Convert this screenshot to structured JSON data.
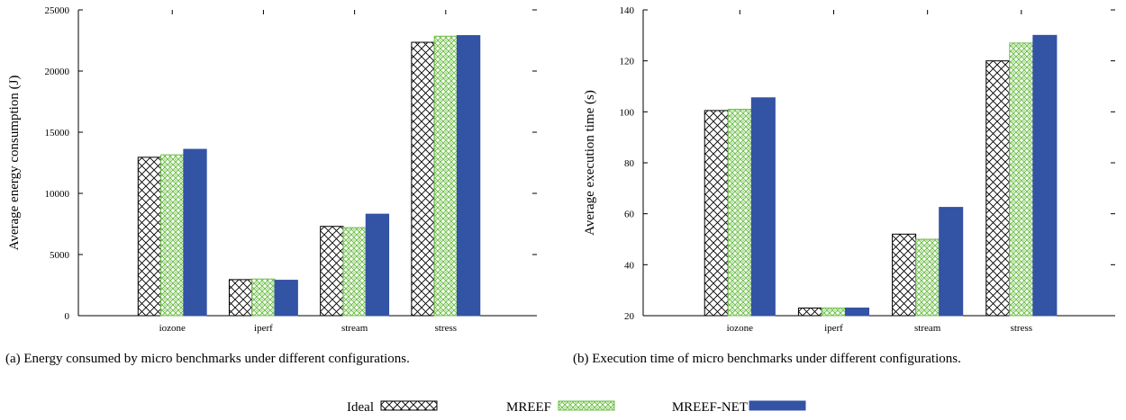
{
  "legend": {
    "items": [
      {
        "label": "Ideal",
        "pattern": "crosshatch"
      },
      {
        "label": "MREEF",
        "pattern": "green-checker"
      },
      {
        "label": "MREEF-NET",
        "pattern": "blue-solid"
      }
    ]
  },
  "colors": {
    "mreef_green": "#6fbf4a",
    "mreef_net_blue": "#3353a5",
    "hatch": "#000000"
  },
  "captions": {
    "a": "(a) Energy consumed by micro benchmarks under different configurations.",
    "b": "(b) Execution time of micro benchmarks under different configurations."
  },
  "chart_data": [
    {
      "type": "bar",
      "title": "",
      "xlabel": "",
      "ylabel": "Average energy consumption (J)",
      "categories": [
        "iozone",
        "iperf",
        "stream",
        "stress"
      ],
      "ylim": [
        0,
        25000
      ],
      "yticks": [
        0,
        5000,
        10000,
        15000,
        20000,
        25000
      ],
      "series": [
        {
          "name": "Ideal",
          "values": [
            12950,
            2950,
            7300,
            22350
          ]
        },
        {
          "name": "MREEF",
          "values": [
            13150,
            3000,
            7200,
            22850
          ]
        },
        {
          "name": "MREEF-NET",
          "values": [
            13600,
            2900,
            8300,
            22900
          ]
        }
      ],
      "grid": false,
      "legend": "bottom-center"
    },
    {
      "type": "bar",
      "title": "",
      "xlabel": "",
      "ylabel": "Average execution time (s)",
      "categories": [
        "iozone",
        "iperf",
        "stream",
        "stress"
      ],
      "ylim": [
        20,
        140
      ],
      "yticks": [
        20,
        40,
        60,
        80,
        100,
        120,
        140
      ],
      "series": [
        {
          "name": "Ideal",
          "values": [
            100.5,
            23,
            52,
            120
          ]
        },
        {
          "name": "MREEF",
          "values": [
            101,
            23,
            50,
            127
          ]
        },
        {
          "name": "MREEF-NET",
          "values": [
            105.5,
            23,
            62.5,
            130
          ]
        }
      ],
      "grid": false,
      "legend": "bottom-center"
    }
  ]
}
